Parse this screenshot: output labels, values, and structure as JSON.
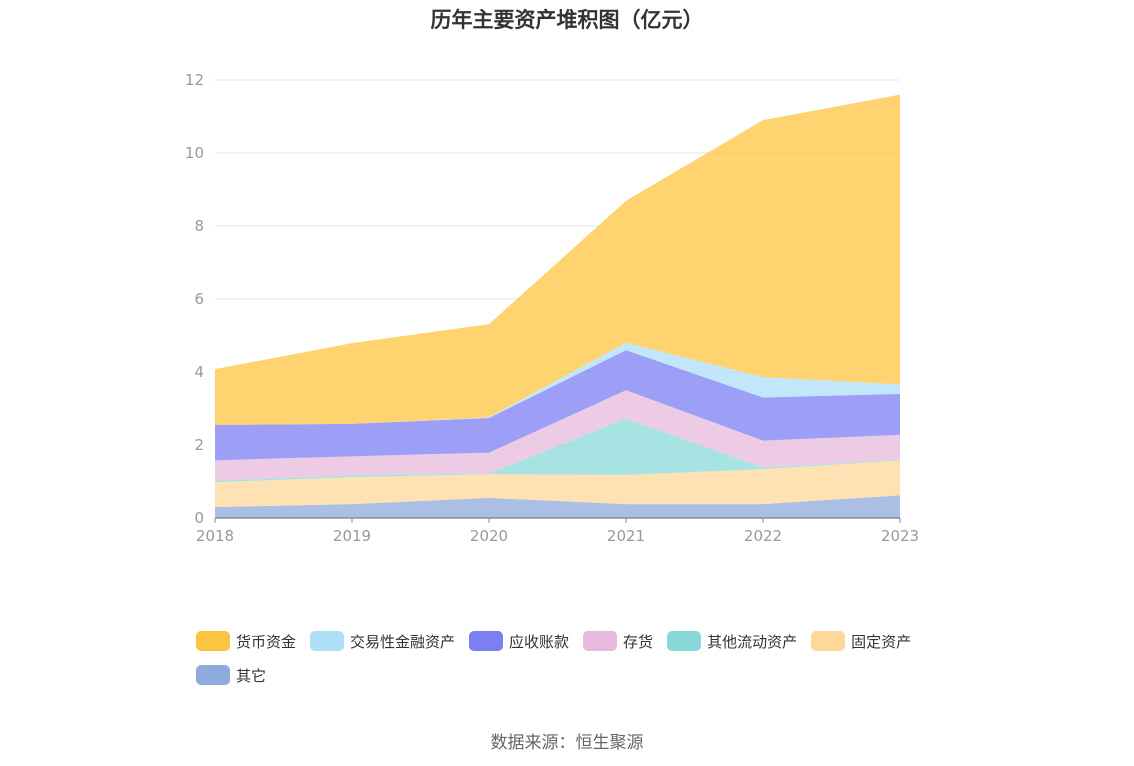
{
  "title": "历年主要资产堆积图（亿元）",
  "source": "数据来源：恒生聚源",
  "chart_data": {
    "type": "area",
    "stacked": true,
    "title": "历年主要资产堆积图（亿元）",
    "categories": [
      "2018",
      "2019",
      "2020",
      "2021",
      "2022",
      "2023"
    ],
    "ylim": [
      0,
      12
    ],
    "yticks": [
      0,
      2,
      4,
      6,
      8,
      10,
      12
    ],
    "grid": true,
    "legend_position": "bottom",
    "series": [
      {
        "name": "其它",
        "color": "#8faadc",
        "values": [
          0.3,
          0.38,
          0.55,
          0.38,
          0.38,
          0.62
        ]
      },
      {
        "name": "固定资产",
        "color": "#fdd89a",
        "values": [
          0.68,
          0.74,
          0.65,
          0.8,
          0.96,
          0.96
        ]
      },
      {
        "name": "其他流动资产",
        "color": "#8ad9d9",
        "values": [
          0.04,
          0.05,
          0.02,
          1.55,
          0.04,
          0.02
        ]
      },
      {
        "name": "存货",
        "color": "#e8b9dc",
        "values": [
          0.56,
          0.52,
          0.57,
          0.77,
          0.74,
          0.68
        ]
      },
      {
        "name": "应收账款",
        "color": "#7b7ff2",
        "values": [
          0.97,
          0.89,
          0.95,
          1.1,
          1.18,
          1.12
        ]
      },
      {
        "name": "交易性金融资产",
        "color": "#addff9",
        "values": [
          0.0,
          0.0,
          0.02,
          0.2,
          0.56,
          0.26
        ]
      },
      {
        "name": "货币资金",
        "color": "#fdc440",
        "values": [
          1.53,
          2.21,
          2.55,
          3.89,
          7.04,
          7.94
        ]
      }
    ],
    "legend_order": [
      "货币资金",
      "交易性金融资产",
      "应收账款",
      "存货",
      "其他流动资产",
      "固定资产",
      "其它"
    ]
  }
}
